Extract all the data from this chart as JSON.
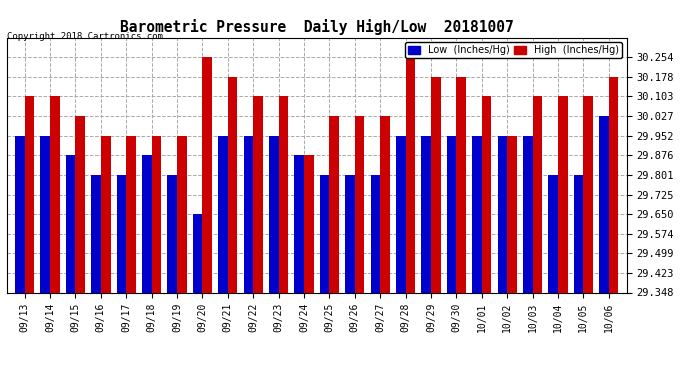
{
  "title": "Barometric Pressure  Daily High/Low  20181007",
  "copyright": "Copyright 2018 Cartronics.com",
  "legend_low": "Low  (Inches/Hg)",
  "legend_high": "High  (Inches/Hg)",
  "categories": [
    "09/13",
    "09/14",
    "09/15",
    "09/16",
    "09/17",
    "09/18",
    "09/19",
    "09/20",
    "09/21",
    "09/22",
    "09/23",
    "09/24",
    "09/25",
    "09/26",
    "09/27",
    "09/28",
    "09/29",
    "09/30",
    "10/01",
    "10/02",
    "10/03",
    "10/04",
    "10/05",
    "10/06"
  ],
  "low_values": [
    29.952,
    29.952,
    29.876,
    29.801,
    29.801,
    29.876,
    29.801,
    29.65,
    29.952,
    29.952,
    29.952,
    29.876,
    29.801,
    29.801,
    29.801,
    29.952,
    29.952,
    29.952,
    29.952,
    29.952,
    29.952,
    29.801,
    29.801,
    30.027
  ],
  "high_values": [
    30.103,
    30.103,
    30.027,
    29.952,
    29.952,
    29.952,
    29.952,
    30.254,
    30.178,
    30.103,
    30.103,
    29.876,
    30.027,
    30.027,
    30.027,
    30.254,
    30.178,
    30.178,
    30.103,
    29.952,
    30.103,
    30.103,
    30.103,
    30.178
  ],
  "low_color": "#0000cc",
  "high_color": "#cc0000",
  "background_color": "#ffffff",
  "grid_color": "#aaaaaa",
  "ymin": 29.348,
  "ymax": 30.33,
  "yticks": [
    30.254,
    30.178,
    30.103,
    30.027,
    29.952,
    29.876,
    29.801,
    29.725,
    29.65,
    29.574,
    29.499,
    29.423,
    29.348
  ]
}
